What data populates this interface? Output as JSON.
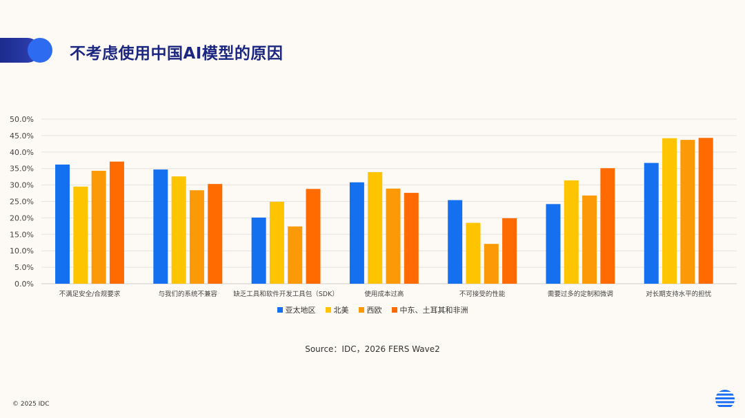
{
  "page": {
    "title": "不考虑使用中国AI模型的原因",
    "source": "Source：IDC，2026 FERS Wave2",
    "copyright": "© 2025 IDC",
    "logo_icon": "idc-globe-icon"
  },
  "colors": {
    "title": "#1a2680",
    "accent_dark": "#1b2a8c",
    "accent_blue": "#2d6cf0",
    "background": "#fdfaf5"
  },
  "chart_data": {
    "type": "bar",
    "title": "",
    "xlabel": "",
    "ylabel": "",
    "ylim": [
      0,
      50
    ],
    "ytick_step": 5,
    "ytick_format": "percent_1dp",
    "grid": true,
    "legend_position": "bottom",
    "categories": [
      "不满足安全/合规要求",
      "与我们的系统不兼容",
      "缺乏工具和软件开发工具包（SDK）",
      "使用成本过高",
      "不可接受的性能",
      "需要过多的定制和微调",
      "对长期支持水平的担忧"
    ],
    "series": [
      {
        "name": "亚太地区",
        "color": "#1570ef",
        "values": [
          36.2,
          34.7,
          20.1,
          30.8,
          25.4,
          24.2,
          36.7
        ]
      },
      {
        "name": "北美",
        "color": "#ffc400",
        "values": [
          29.5,
          32.6,
          24.9,
          33.9,
          18.5,
          31.4,
          44.2
        ]
      },
      {
        "name": "西欧",
        "color": "#fb9a06",
        "values": [
          34.3,
          28.4,
          17.4,
          28.9,
          12.1,
          26.8,
          43.7
        ]
      },
      {
        "name": "中东、土耳其和非洲",
        "color": "#ff6b00",
        "values": [
          37.1,
          30.3,
          28.8,
          27.6,
          19.9,
          35.1,
          44.3
        ]
      }
    ]
  }
}
